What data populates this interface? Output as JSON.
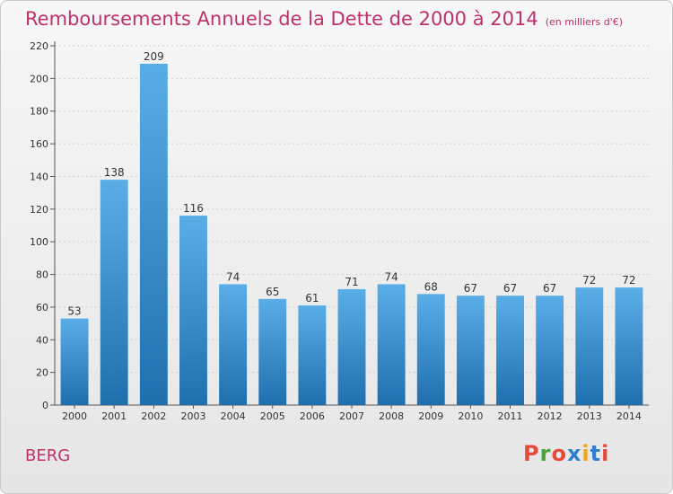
{
  "header": {
    "title": "Remboursements Annuels de la Dette de 2000 à 2014",
    "unit": "(en milliers d'€)"
  },
  "footer": {
    "commune": "BERG",
    "logo": "Proxiti"
  },
  "colors": {
    "accent": "#c0306b",
    "bar_top": "#5aaee8",
    "bar_bottom": "#1f6fae",
    "logo_letters": [
      "#e64a3b",
      "#4aa13b",
      "#e64a3b",
      "#2f7fd0",
      "#f2a51a",
      "#2f7fd0",
      "#e64a3b"
    ]
  },
  "chart_data": {
    "type": "bar",
    "title": "Remboursements Annuels de la Dette de 2000 à 2014",
    "categories": [
      "2000",
      "2001",
      "2002",
      "2003",
      "2004",
      "2005",
      "2006",
      "2007",
      "2008",
      "2009",
      "2010",
      "2011",
      "2012",
      "2013",
      "2014"
    ],
    "values": [
      53,
      138,
      209,
      116,
      74,
      65,
      61,
      71,
      74,
      68,
      67,
      67,
      67,
      72,
      72
    ],
    "xlabel": "",
    "ylabel": "",
    "ylim": [
      0,
      220
    ],
    "yticks": [
      0,
      20,
      40,
      60,
      80,
      100,
      120,
      140,
      160,
      180,
      200,
      220
    ],
    "grid": true
  }
}
